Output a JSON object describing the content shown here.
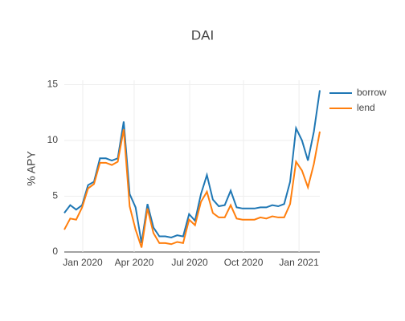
{
  "chart_data": {
    "type": "line",
    "title": "DAI",
    "ylabel": "% APY",
    "x": [
      0,
      1,
      2,
      3,
      4,
      5,
      6,
      7,
      8,
      9,
      10,
      11,
      12,
      13,
      14,
      15,
      16,
      17,
      18,
      19,
      20,
      21,
      22,
      23,
      24,
      25,
      26,
      27,
      28,
      29,
      30,
      31,
      32,
      33,
      34,
      35,
      36,
      37,
      38,
      39,
      40,
      41,
      42,
      43
    ],
    "xlim": [
      0,
      43
    ],
    "xticks": [
      {
        "value": 3.11,
        "label": "Jan 2020"
      },
      {
        "value": 11.76,
        "label": "Apr 2020"
      },
      {
        "value": 21.1,
        "label": "Jul 2020"
      },
      {
        "value": 30.16,
        "label": "Oct 2020"
      },
      {
        "value": 39.5,
        "label": "Jan 2021"
      }
    ],
    "ylim": [
      0,
      15.4
    ],
    "yticks": [
      0,
      5,
      10,
      15
    ],
    "grid": true,
    "legend": "right",
    "series": [
      {
        "name": "borrow",
        "color": "#1f77b4",
        "values": [
          3.5,
          4.2,
          3.8,
          4.2,
          6.0,
          6.3,
          8.4,
          8.4,
          8.2,
          8.4,
          11.7,
          5.2,
          4.0,
          0.8,
          4.3,
          2.2,
          1.4,
          1.4,
          1.3,
          1.5,
          1.4,
          3.4,
          2.8,
          5.2,
          6.9,
          4.7,
          4.1,
          4.2,
          5.5,
          4.0,
          3.9,
          3.9,
          3.9,
          4.0,
          4.0,
          4.2,
          4.1,
          4.3,
          6.3,
          11.1,
          10.0,
          8.2,
          10.8,
          14.5
        ]
      },
      {
        "name": "lend",
        "color": "#ff7f0e",
        "values": [
          2.0,
          3.0,
          2.9,
          4.0,
          5.7,
          6.1,
          8.0,
          8.0,
          7.8,
          8.1,
          11.0,
          4.1,
          2.0,
          0.4,
          3.9,
          1.7,
          0.8,
          0.8,
          0.7,
          0.9,
          0.8,
          2.9,
          2.4,
          4.5,
          5.4,
          3.5,
          3.1,
          3.1,
          4.2,
          3.0,
          2.9,
          2.9,
          2.9,
          3.1,
          3.0,
          3.2,
          3.1,
          3.1,
          4.3,
          8.1,
          7.3,
          5.8,
          7.9,
          10.8
        ]
      }
    ]
  }
}
